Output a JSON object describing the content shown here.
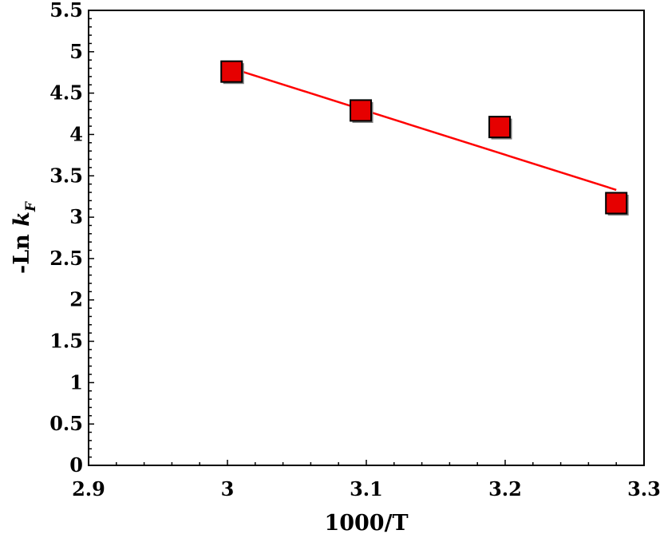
{
  "chart_data": {
    "type": "scatter",
    "xlabel": "1000/T",
    "ylabel": {
      "prefix": "-Ln ",
      "var": "k",
      "sub": "F"
    },
    "xlim": [
      2.9,
      3.3
    ],
    "ylim": [
      0,
      5.5
    ],
    "x_ticks": [
      "2.9",
      "3",
      "3.1",
      "3.2",
      "3.3"
    ],
    "y_ticks": [
      "0",
      "0.5",
      "1",
      "1.5",
      "2",
      "2.5",
      "3",
      "3.5",
      "4",
      "4.5",
      "5",
      "5.5"
    ],
    "grid": false,
    "legend": "none",
    "marker_color": "#e60000",
    "line_color": "#ff0000",
    "series": [
      {
        "points": [
          {
            "x": 3.003,
            "y": 4.76
          },
          {
            "x": 3.096,
            "y": 4.29
          },
          {
            "x": 3.196,
            "y": 4.09
          },
          {
            "x": 3.28,
            "y": 3.17
          }
        ]
      }
    ],
    "trendline": {
      "x": [
        3.003,
        3.28
      ],
      "y": [
        4.8,
        3.33
      ]
    }
  }
}
